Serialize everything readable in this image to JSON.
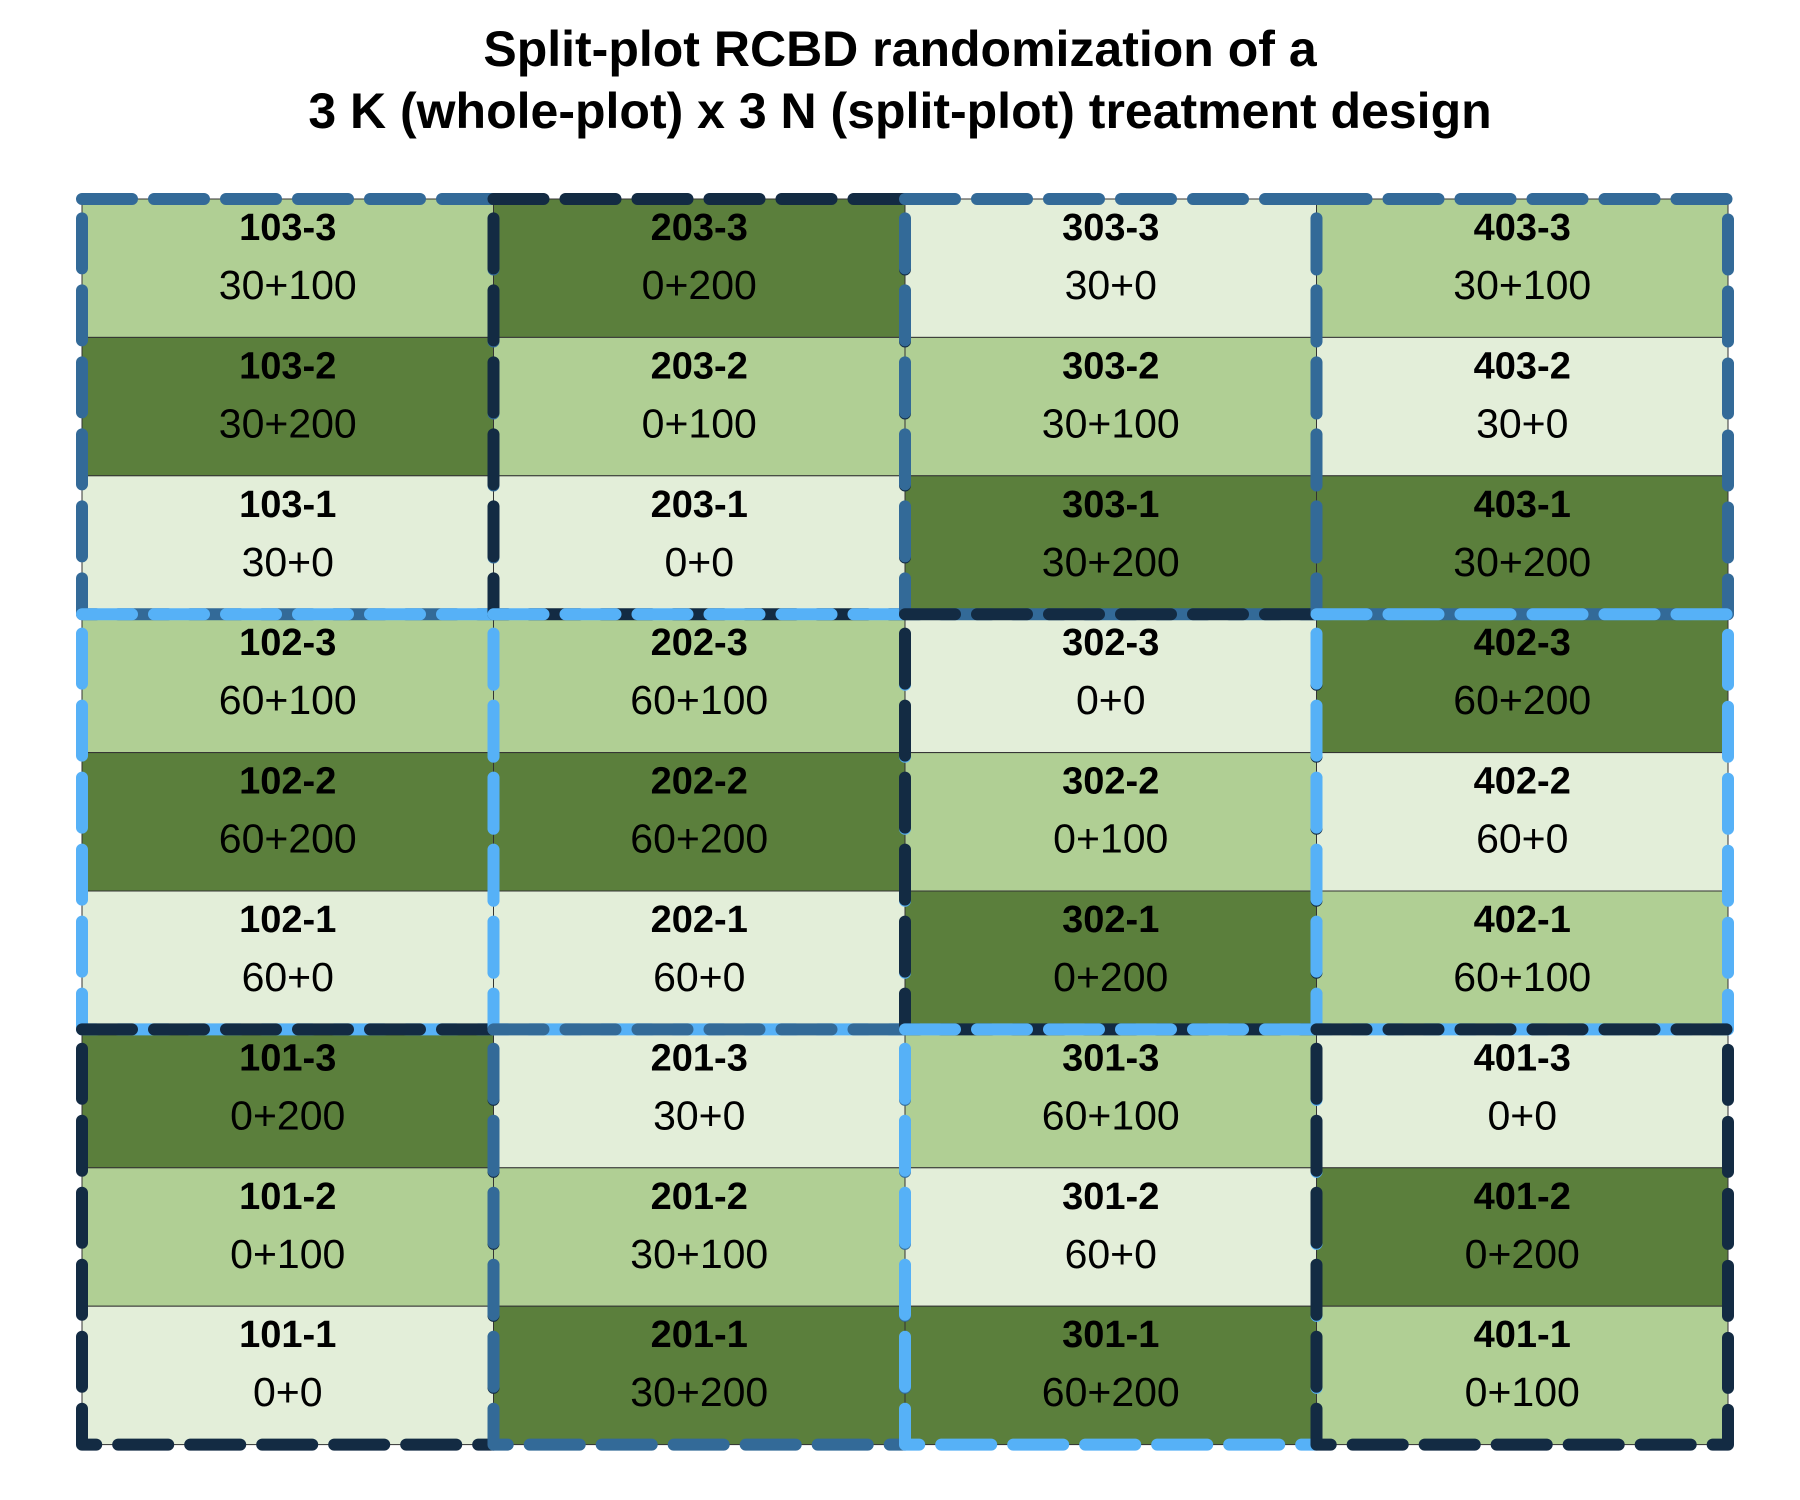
{
  "title": {
    "line1": "Split-plot RCBD randomization of a",
    "line2": "3 K (whole-plot) x 3 N (split-plot) treatment design"
  },
  "colors": {
    "n0": "#e3eed9",
    "n100": "#b0cf94",
    "n200": "#5b7f3c",
    "k0": "#132b43",
    "k30": "#336a98",
    "k60": "#56b1f7"
  },
  "layout": {
    "columns": [
      {
        "wholeplots": [
          {
            "id": "103",
            "k": "30"
          },
          {
            "id": "102",
            "k": "60"
          },
          {
            "id": "101",
            "k": "0"
          }
        ],
        "cells": [
          {
            "id": "103-3",
            "trt": "30+100",
            "n": "100"
          },
          {
            "id": "103-2",
            "trt": "30+200",
            "n": "200"
          },
          {
            "id": "103-1",
            "trt": "30+0",
            "n": "0"
          },
          {
            "id": "102-3",
            "trt": "60+100",
            "n": "100"
          },
          {
            "id": "102-2",
            "trt": "60+200",
            "n": "200"
          },
          {
            "id": "102-1",
            "trt": "60+0",
            "n": "0"
          },
          {
            "id": "101-3",
            "trt": "0+200",
            "n": "200"
          },
          {
            "id": "101-2",
            "trt": "0+100",
            "n": "100"
          },
          {
            "id": "101-1",
            "trt": "0+0",
            "n": "0"
          }
        ]
      },
      {
        "wholeplots": [
          {
            "id": "203",
            "k": "0"
          },
          {
            "id": "202",
            "k": "60"
          },
          {
            "id": "201",
            "k": "30"
          }
        ],
        "cells": [
          {
            "id": "203-3",
            "trt": "0+200",
            "n": "200"
          },
          {
            "id": "203-2",
            "trt": "0+100",
            "n": "100"
          },
          {
            "id": "203-1",
            "trt": "0+0",
            "n": "0"
          },
          {
            "id": "202-3",
            "trt": "60+100",
            "n": "100"
          },
          {
            "id": "202-2",
            "trt": "60+200",
            "n": "200"
          },
          {
            "id": "202-1",
            "trt": "60+0",
            "n": "0"
          },
          {
            "id": "201-3",
            "trt": "30+0",
            "n": "0"
          },
          {
            "id": "201-2",
            "trt": "30+100",
            "n": "100"
          },
          {
            "id": "201-1",
            "trt": "30+200",
            "n": "200"
          }
        ]
      },
      {
        "wholeplots": [
          {
            "id": "303",
            "k": "30"
          },
          {
            "id": "302",
            "k": "0"
          },
          {
            "id": "301",
            "k": "60"
          }
        ],
        "cells": [
          {
            "id": "303-3",
            "trt": "30+0",
            "n": "0"
          },
          {
            "id": "303-2",
            "trt": "30+100",
            "n": "100"
          },
          {
            "id": "303-1",
            "trt": "30+200",
            "n": "200"
          },
          {
            "id": "302-3",
            "trt": "0+0",
            "n": "0"
          },
          {
            "id": "302-2",
            "trt": "0+100",
            "n": "100"
          },
          {
            "id": "302-1",
            "trt": "0+200",
            "n": "200"
          },
          {
            "id": "301-3",
            "trt": "60+100",
            "n": "100"
          },
          {
            "id": "301-2",
            "trt": "60+0",
            "n": "0"
          },
          {
            "id": "301-1",
            "trt": "60+200",
            "n": "200"
          }
        ]
      },
      {
        "wholeplots": [
          {
            "id": "403",
            "k": "30"
          },
          {
            "id": "402",
            "k": "60"
          },
          {
            "id": "401",
            "k": "0"
          }
        ],
        "cells": [
          {
            "id": "403-3",
            "trt": "30+100",
            "n": "100"
          },
          {
            "id": "403-2",
            "trt": "30+0",
            "n": "0"
          },
          {
            "id": "403-1",
            "trt": "30+200",
            "n": "200"
          },
          {
            "id": "402-3",
            "trt": "60+200",
            "n": "200"
          },
          {
            "id": "402-2",
            "trt": "60+0",
            "n": "0"
          },
          {
            "id": "402-1",
            "trt": "60+100",
            "n": "100"
          },
          {
            "id": "401-3",
            "trt": "0+0",
            "n": "0"
          },
          {
            "id": "401-2",
            "trt": "0+200",
            "n": "200"
          },
          {
            "id": "401-1",
            "trt": "0+100",
            "n": "100"
          }
        ]
      }
    ]
  }
}
